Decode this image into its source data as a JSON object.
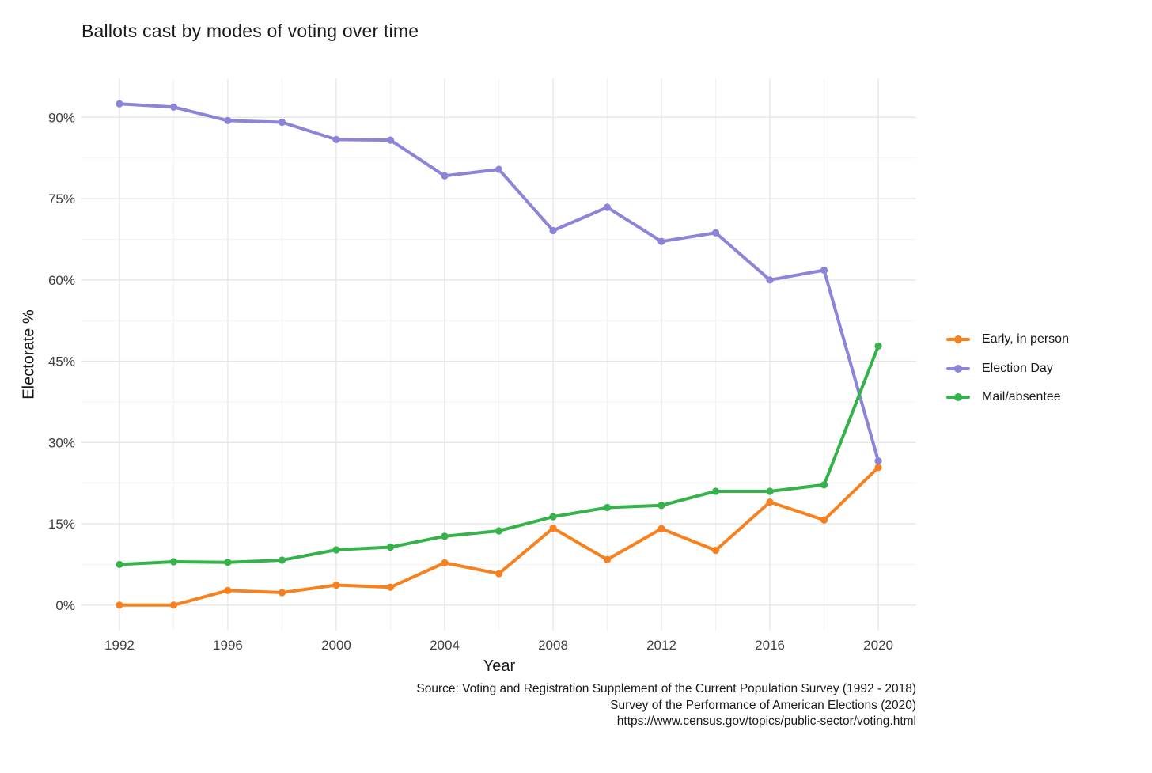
{
  "title": "Ballots cast by modes of voting over time",
  "caption": {
    "lines": [
      "Source: Voting and Registration Supplement of the Current Population Survey (1992 - 2018)",
      "Survey of the Performance of American Elections (2020)",
      "https://www.census.gov/topics/public-sector/voting.html"
    ]
  },
  "chart_data": {
    "type": "line",
    "title": "Ballots cast by modes of voting over time",
    "xlabel": "Year",
    "ylabel": "Electorate %",
    "x": [
      1992,
      1994,
      1996,
      1998,
      2000,
      2002,
      2004,
      2006,
      2008,
      2010,
      2012,
      2014,
      2016,
      2018,
      2020
    ],
    "series": [
      {
        "name": "Early, in person",
        "slug": "early-in-person",
        "color": "#F8811F",
        "values": [
          0.0,
          0.0,
          2.7,
          2.3,
          3.7,
          3.3,
          7.8,
          5.8,
          14.2,
          8.4,
          14.1,
          10.1,
          19.0,
          15.7,
          25.4
        ]
      },
      {
        "name": "Election Day",
        "slug": "election-day",
        "color": "#8C84D8",
        "values": [
          92.5,
          91.9,
          89.4,
          89.1,
          85.9,
          85.8,
          79.2,
          80.4,
          69.1,
          73.4,
          67.1,
          68.7,
          60.0,
          61.8,
          26.6
        ]
      },
      {
        "name": "Mail/absentee",
        "slug": "mail-absentee",
        "color": "#35B34A",
        "values": [
          7.5,
          8.0,
          7.9,
          8.3,
          10.2,
          10.7,
          12.7,
          13.7,
          16.3,
          18.0,
          18.4,
          21.0,
          21.0,
          22.2,
          47.8
        ]
      }
    ],
    "x_ticks": {
      "major": [
        1992,
        1996,
        2000,
        2004,
        2008,
        2012,
        2016,
        2020
      ],
      "minor": [
        1994,
        1998,
        2002,
        2006,
        2010,
        2014,
        2018
      ],
      "labels": [
        "1992",
        "1996",
        "2000",
        "2004",
        "2008",
        "2012",
        "2016",
        "2020"
      ]
    },
    "y_ticks": {
      "major": [
        0,
        15,
        30,
        45,
        60,
        75,
        90
      ],
      "minor": [
        7.5,
        22.5,
        37.5,
        52.5,
        67.5,
        82.5
      ],
      "labels": [
        "0%",
        "15%",
        "30%",
        "45%",
        "60%",
        "75%",
        "90%"
      ]
    },
    "xlim": [
      1990.6,
      2021.4
    ],
    "ylim": [
      -4.7,
      97.2
    ],
    "grid": "major+minor",
    "legend_position": "right",
    "background": "#FFFFFF",
    "grid_color_major": "#E6E6E6",
    "grid_color_minor": "#F3F3F3"
  }
}
